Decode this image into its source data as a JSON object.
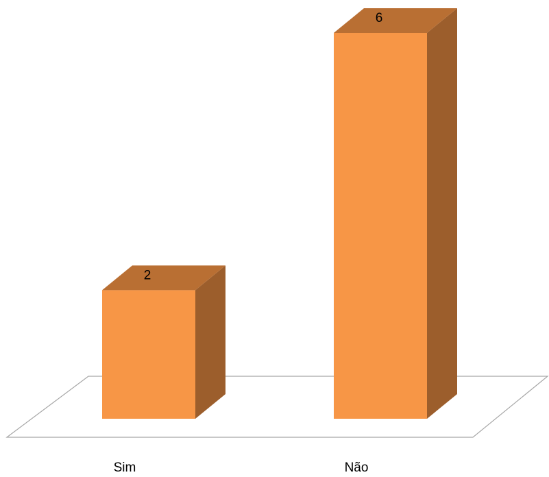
{
  "chart_data": {
    "type": "bar",
    "style": "3d-column",
    "categories": [
      "Sim",
      "Não"
    ],
    "values": [
      2,
      6
    ],
    "data_labels": [
      "2",
      "6"
    ],
    "title": "",
    "xlabel": "",
    "ylabel": "",
    "ylim": [
      0,
      6
    ],
    "grid": false,
    "legend": "none",
    "colors": {
      "front": "#F79646",
      "top": "#B96F33",
      "side": "#9C5E2C",
      "floor_stroke": "#A6A6A6"
    }
  }
}
